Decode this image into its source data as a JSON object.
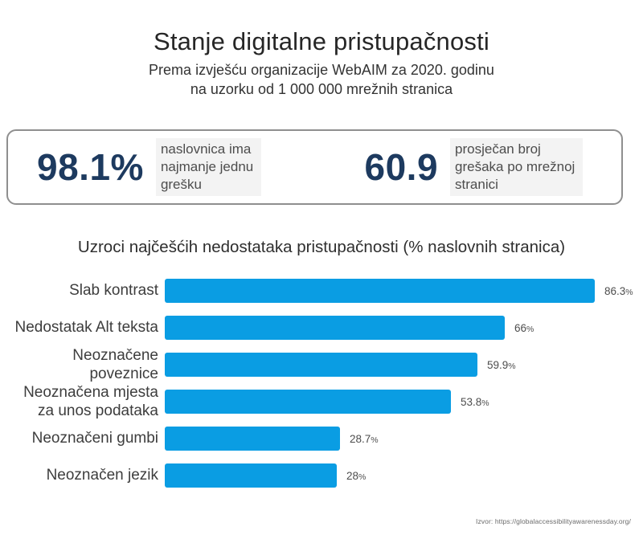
{
  "header": {
    "title": "Stanje digitalne pristupačnosti",
    "subtitle_line1": "Prema izvješću organizacije WebAIM za 2020. godinu",
    "subtitle_line2": "na uzorku od 1 000 000 mrežnih stranica"
  },
  "stats": [
    {
      "value": "98.1%",
      "description": "naslovnica ima\nnajmanje jednu\ngrešku"
    },
    {
      "value": "60.9",
      "description": "prosječan broj\ngrešaka po mrežnoj\nstranici"
    }
  ],
  "chart_data": {
    "type": "bar",
    "orientation": "horizontal",
    "title": "Uzroci najčešćih nedostataka  pristupačnosti (% naslovnih stranica)",
    "categories": [
      "Slab kontrast",
      "Nedostatak Alt teksta",
      "Neoznačene poveznice",
      "Neoznačena mjesta\nza unos podataka",
      "Neoznačeni gumbi",
      "Neoznačen jezik"
    ],
    "values": [
      86.3,
      66,
      59.9,
      53.8,
      28.7,
      28
    ],
    "value_labels": [
      "86.3%",
      "66%",
      "59.9%",
      "53.8%",
      "28.7%",
      "28%"
    ],
    "xlabel": "",
    "ylabel": "",
    "xlim": [
      0,
      100
    ],
    "grid": false,
    "legend": null,
    "bar_color": "#0a9de3"
  },
  "colors": {
    "accent_blue": "#0a9de3",
    "stat_navy": "#1d3a5f",
    "text_dark": "#262626",
    "text_gray": "#4d4d4d",
    "box_border": "#8f8f8f",
    "highlight_bg": "#f3f3f3"
  },
  "footer": {
    "source": "Izvor: https://globalaccessibilityawarenessday.org/"
  }
}
